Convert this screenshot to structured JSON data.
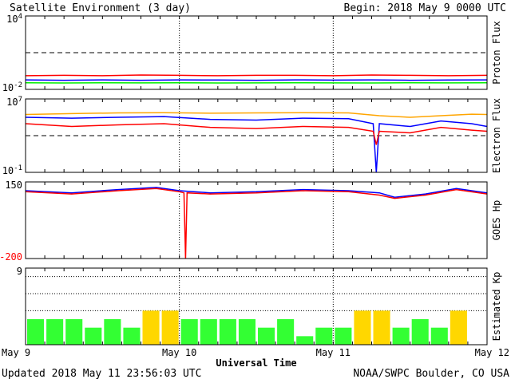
{
  "header": {
    "title": "Satellite Environment (3 day)",
    "begin": "Begin:  2018 May 9 0000 UTC"
  },
  "footer": {
    "updated": "Updated 2018 May 11 23:56:03 UTC",
    "credit": "NOAA/SWPC Boulder, CO USA"
  },
  "colors": {
    "red": "#ff0000",
    "blue": "#0000ff",
    "green": "#00ee00",
    "orange": "#ffa500",
    "kp_green": "#33ff33",
    "kp_yellow": "#ffd700",
    "frame": "#000000"
  },
  "chart_data": [
    {
      "type": "line",
      "ylabel": "Proton Flux",
      "y_scale": "log",
      "ylim": [
        0.01,
        10000
      ],
      "y_tick_labels": [
        "10^4",
        "10^-2"
      ],
      "threshold": 10,
      "x_days": [
        0,
        3
      ],
      "series": [
        {
          "color": "red",
          "x": [
            0,
            0.25,
            0.5,
            0.75,
            1,
            1.25,
            1.5,
            1.75,
            2,
            2.25,
            2.5,
            2.75,
            3
          ],
          "y": [
            0.13,
            0.14,
            0.13,
            0.15,
            0.14,
            0.13,
            0.14,
            0.14,
            0.13,
            0.15,
            0.14,
            0.13,
            0.14
          ]
        },
        {
          "color": "blue",
          "x": [
            0,
            0.25,
            0.5,
            0.75,
            1,
            1.25,
            1.5,
            1.75,
            2,
            2.25,
            2.5,
            2.75,
            3
          ],
          "y": [
            0.06,
            0.055,
            0.06,
            0.055,
            0.06,
            0.058,
            0.055,
            0.06,
            0.057,
            0.06,
            0.055,
            0.058,
            0.06
          ]
        },
        {
          "color": "green",
          "x": [
            0,
            0.25,
            0.5,
            0.75,
            1,
            1.25,
            1.5,
            1.75,
            2,
            2.25,
            2.5,
            2.75,
            3
          ],
          "y": [
            0.035,
            0.033,
            0.035,
            0.034,
            0.035,
            0.033,
            0.034,
            0.035,
            0.034,
            0.033,
            0.035,
            0.034,
            0.035
          ]
        }
      ]
    },
    {
      "type": "line",
      "ylabel": "Electron Flux",
      "y_scale": "log",
      "ylim": [
        0.1,
        10000000
      ],
      "y_tick_labels": [
        "10^7",
        "10^-1"
      ],
      "threshold": 1000,
      "x_days": [
        0,
        3
      ],
      "series": [
        {
          "color": "orange",
          "x": [
            0,
            0.3,
            0.6,
            0.9,
            1.2,
            1.5,
            1.8,
            2.1,
            2.3,
            2.5,
            2.7,
            2.9,
            3
          ],
          "y": [
            200000,
            250000,
            300000,
            320000,
            280000,
            300000,
            320000,
            300000,
            150000,
            100000,
            150000,
            220000,
            200000
          ]
        },
        {
          "color": "blue",
          "x": [
            0,
            0.3,
            0.6,
            0.9,
            1.2,
            1.5,
            1.8,
            2.1,
            2.26,
            2.28,
            2.3,
            2.5,
            2.7,
            2.9,
            3
          ],
          "y": [
            100000,
            80000,
            100000,
            120000,
            60000,
            50000,
            80000,
            70000,
            20000,
            0.1,
            20000,
            10000,
            40000,
            20000,
            10000
          ]
        },
        {
          "color": "red",
          "x": [
            0,
            0.3,
            0.6,
            0.9,
            1.2,
            1.5,
            1.8,
            2.1,
            2.26,
            2.28,
            2.3,
            2.5,
            2.7,
            2.9,
            3
          ],
          "y": [
            20000,
            10000,
            15000,
            20000,
            8000,
            6000,
            10000,
            8000,
            3000,
            100,
            3000,
            2000,
            8000,
            4000,
            3000
          ]
        }
      ]
    },
    {
      "type": "line",
      "ylabel": "GOES Hp",
      "ylim": [
        -200,
        150
      ],
      "y_tick_labels": [
        "150",
        "-200"
      ],
      "x_days": [
        0,
        3
      ],
      "series": [
        {
          "color": "blue",
          "x": [
            0,
            0.3,
            0.6,
            0.85,
            1.0,
            1.2,
            1.5,
            1.8,
            2.1,
            2.3,
            2.4,
            2.6,
            2.8,
            3
          ],
          "y": [
            110,
            100,
            115,
            125,
            110,
            100,
            105,
            115,
            110,
            100,
            80,
            95,
            120,
            100
          ]
        },
        {
          "color": "red",
          "x": [
            0,
            0.3,
            0.6,
            0.85,
            1.0,
            1.03,
            1.04,
            1.05,
            1.2,
            1.5,
            1.8,
            2.1,
            2.3,
            2.4,
            2.6,
            2.8,
            3
          ],
          "y": [
            105,
            95,
            110,
            120,
            105,
            100,
            -200,
            100,
            95,
            100,
            110,
            105,
            90,
            75,
            90,
            115,
            95
          ]
        }
      ]
    },
    {
      "type": "bar",
      "ylabel": "Estimated Kp",
      "ylim": [
        0,
        9
      ],
      "y_tick_labels": [
        "9"
      ],
      "threshold": 4,
      "x_days": [
        0,
        3
      ],
      "kp": [
        3,
        3,
        3,
        2,
        3,
        2,
        4,
        4,
        3,
        3,
        3,
        3,
        2,
        3,
        1,
        2,
        2,
        4,
        4,
        2,
        3,
        2,
        4,
        0
      ]
    }
  ],
  "x_axis": {
    "title": "Universal Time",
    "tick_labels": [
      "May 9",
      "May 10",
      "May 11",
      "May 12"
    ]
  }
}
